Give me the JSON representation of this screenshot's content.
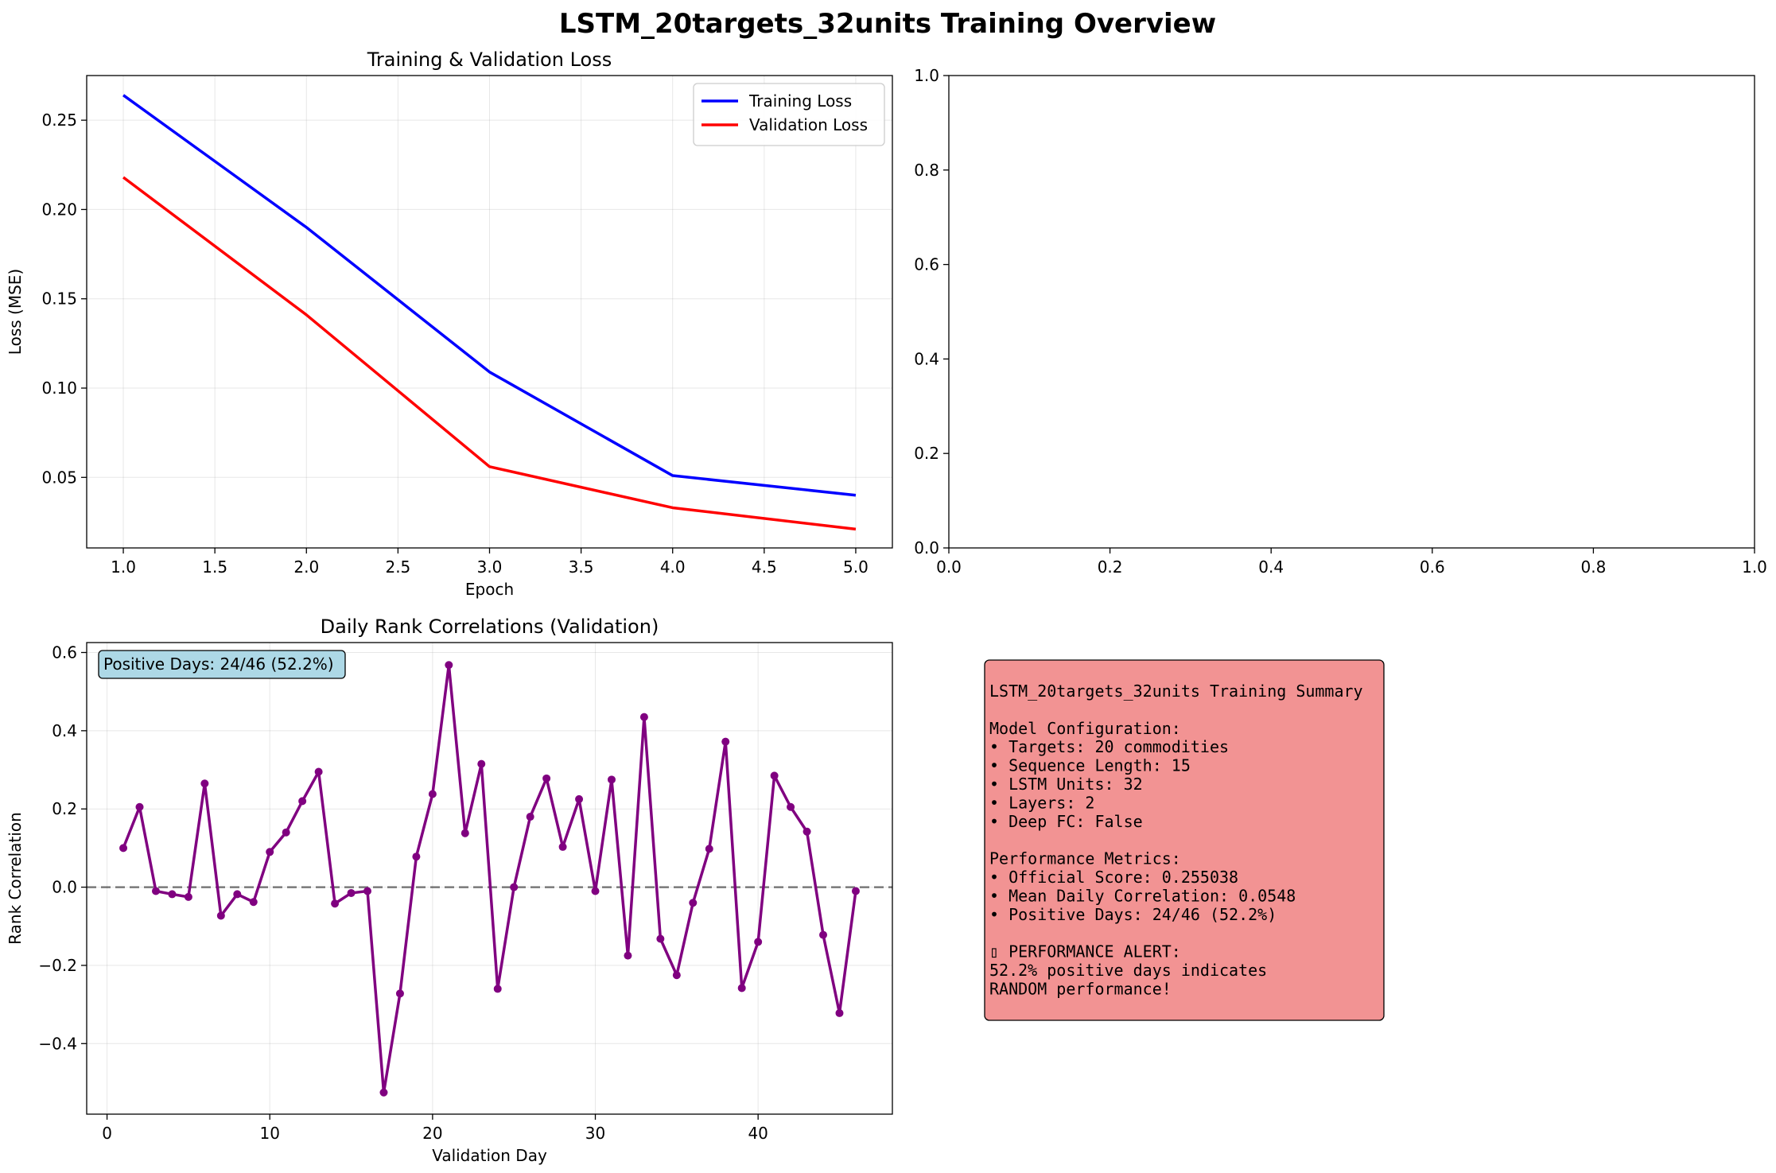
{
  "suptitle": "LSTM_20targets_32units Training Overview",
  "chart_data": [
    {
      "type": "line",
      "title": "Training & Validation Loss",
      "xlabel": "Epoch",
      "ylabel": "Loss (MSE)",
      "xlim": [
        0.8,
        5.2
      ],
      "ylim": [
        0.0105,
        0.275
      ],
      "xticks": [
        1.0,
        1.5,
        2.0,
        2.5,
        3.0,
        3.5,
        4.0,
        4.5,
        5.0
      ],
      "xtick_labels": [
        "1.0",
        "1.5",
        "2.0",
        "2.5",
        "3.0",
        "3.5",
        "4.0",
        "4.5",
        "5.0"
      ],
      "yticks": [
        0.05,
        0.1,
        0.15,
        0.2,
        0.25
      ],
      "ytick_labels": [
        "0.05",
        "0.10",
        "0.15",
        "0.20",
        "0.25"
      ],
      "grid": true,
      "legend_position": "upper right",
      "x": [
        1,
        2,
        3,
        4,
        5
      ],
      "series": [
        {
          "name": "Training Loss",
          "color": "#0000ff",
          "values": [
            0.264,
            0.19,
            0.109,
            0.051,
            0.04
          ]
        },
        {
          "name": "Validation Loss",
          "color": "#ff0000",
          "values": [
            0.218,
            0.141,
            0.056,
            0.033,
            0.021
          ]
        }
      ]
    },
    {
      "type": "line",
      "title": "",
      "xlim": [
        0,
        1
      ],
      "ylim": [
        0,
        1
      ],
      "xticks": [
        0.0,
        0.2,
        0.4,
        0.6,
        0.8,
        1.0
      ],
      "xtick_labels": [
        "0.0",
        "0.2",
        "0.4",
        "0.6",
        "0.8",
        "1.0"
      ],
      "yticks": [
        0.0,
        0.2,
        0.4,
        0.6,
        0.8,
        1.0
      ],
      "ytick_labels": [
        "0.0",
        "0.2",
        "0.4",
        "0.6",
        "0.8",
        "1.0"
      ],
      "grid": false,
      "series": []
    },
    {
      "type": "line",
      "title": "Daily Rank Correlations (Validation)",
      "xlabel": "Validation Day",
      "ylabel": "Rank Correlation",
      "xlim": [
        -1.25,
        48.25
      ],
      "ylim": [
        -0.5804,
        0.6254
      ],
      "xticks": [
        0,
        10,
        20,
        30,
        40
      ],
      "xtick_labels": [
        "0",
        "10",
        "20",
        "30",
        "40"
      ],
      "yticks": [
        -0.4,
        -0.2,
        0.0,
        0.2,
        0.4,
        0.6
      ],
      "ytick_labels": [
        "−0.4",
        "−0.2",
        "0.0",
        "0.2",
        "0.4",
        "0.6"
      ],
      "grid": true,
      "reference_line": 0,
      "annotation": "Positive Days: 24/46 (52.2%)",
      "annotation_position": "top-left",
      "series": [
        {
          "color": "#800080",
          "x": [
            1,
            2,
            3,
            4,
            5,
            6,
            7,
            8,
            9,
            10,
            11,
            12,
            13,
            14,
            15,
            16,
            17,
            18,
            19,
            20,
            21,
            22,
            23,
            24,
            25,
            26,
            27,
            28,
            29,
            30,
            31,
            32,
            33,
            34,
            35,
            36,
            37,
            38,
            39,
            40,
            41,
            42,
            43,
            44,
            45,
            46
          ],
          "values": [
            0.1,
            0.205,
            -0.01,
            -0.018,
            -0.025,
            0.265,
            -0.073,
            -0.018,
            -0.038,
            0.09,
            0.14,
            0.22,
            0.295,
            -0.042,
            -0.015,
            -0.01,
            -0.525,
            -0.272,
            0.078,
            0.238,
            0.568,
            0.138,
            0.315,
            -0.26,
            0.0,
            0.18,
            0.278,
            0.103,
            0.225,
            -0.01,
            0.275,
            -0.175,
            0.435,
            -0.132,
            -0.225,
            -0.04,
            0.098,
            0.372,
            -0.258,
            -0.14,
            0.285,
            0.205,
            0.142,
            -0.122,
            -0.322,
            -0.01
          ]
        }
      ]
    }
  ],
  "summary_box": {
    "background": "#f08080",
    "lines": [
      "LSTM_20targets_32units Training Summary",
      "",
      "Model Configuration:",
      "• Targets: 20 commodities",
      "• Sequence Length: 15",
      "• LSTM Units: 32",
      "• Layers: 2",
      "• Deep FC: False",
      "",
      "Performance Metrics:",
      "• Official Score: 0.255038",
      "• Mean Daily Correlation: 0.0548",
      "• Positive Days: 24/46 (52.2%)",
      "",
      "▯ PERFORMANCE ALERT:",
      "52.2% positive days indicates",
      "RANDOM performance!"
    ]
  }
}
